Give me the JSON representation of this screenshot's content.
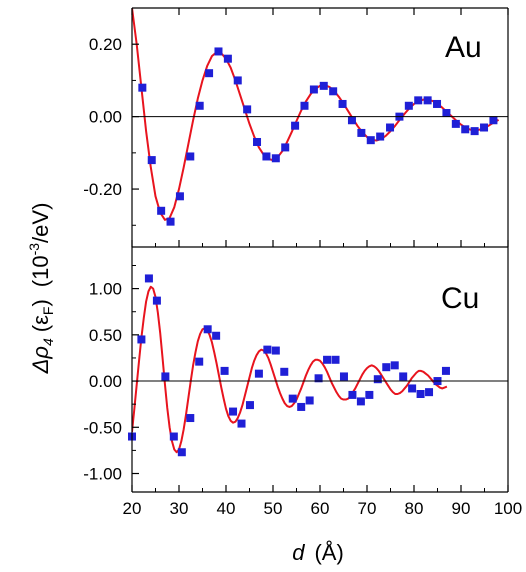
{
  "chart_data": [
    {
      "type": "scatter",
      "panel": "Au",
      "label": "Au",
      "xlim": [
        20,
        100
      ],
      "ylim": [
        -0.36,
        0.3
      ],
      "yticks": [
        -0.2,
        0.0,
        0.2
      ],
      "ytick_labels": [
        "-0.20",
        "0.00",
        "0.20"
      ],
      "points": {
        "x": [
          22.2,
          24.2,
          26.2,
          28.2,
          30.2,
          32.4,
          34.4,
          36.4,
          38.4,
          40.4,
          42.5,
          44.5,
          46.6,
          48.6,
          50.6,
          52.6,
          54.7,
          56.7,
          58.7,
          60.8,
          62.8,
          64.8,
          66.8,
          68.8,
          70.8,
          72.8,
          74.9,
          76.9,
          78.9,
          80.9,
          82.9,
          84.9,
          86.9,
          88.9,
          90.9,
          92.9,
          94.9,
          96.9
        ],
        "y": [
          0.08,
          -0.12,
          -0.26,
          -0.29,
          -0.22,
          -0.11,
          0.03,
          0.12,
          0.18,
          0.16,
          0.1,
          0.02,
          -0.07,
          -0.11,
          -0.115,
          -0.085,
          -0.025,
          0.03,
          0.075,
          0.085,
          0.07,
          0.035,
          -0.01,
          -0.045,
          -0.065,
          -0.055,
          -0.03,
          0.0,
          0.03,
          0.045,
          0.045,
          0.035,
          0.01,
          -0.02,
          -0.035,
          -0.04,
          -0.03,
          -0.01
        ]
      },
      "fit_curve": {
        "x": [
          20.0,
          21.0,
          22.0,
          23.0,
          24.0,
          25.0,
          26.0,
          27.0,
          28.0,
          29.0,
          30.0,
          31.0,
          32.0,
          33.0,
          34.0,
          35.0,
          36.0,
          37.0,
          38.0,
          39.0,
          40.0,
          41.0,
          42.0,
          43.0,
          44.0,
          45.0,
          46.0,
          47.0,
          48.0,
          49.0,
          50.0,
          51.0,
          52.0,
          53.0,
          54.0,
          55.0,
          56.0,
          57.0,
          58.0,
          59.0,
          60.0,
          61.0,
          62.0,
          63.0,
          64.0,
          65.0,
          66.0,
          67.0,
          68.0,
          69.0,
          70.0,
          71.0,
          72.0,
          73.0,
          74.0,
          75.0,
          76.0,
          77.0,
          78.0,
          79.0,
          80.0,
          81.0,
          82.0,
          83.0,
          84.0,
          85.0,
          86.0,
          87.0,
          88.0,
          89.0,
          90.0,
          91.0,
          92.0,
          93.0,
          94.0,
          95.0,
          96.0,
          97.0,
          98.0
        ],
        "y": [
          0.3,
          0.2,
          0.08,
          -0.04,
          -0.14,
          -0.22,
          -0.265,
          -0.285,
          -0.28,
          -0.25,
          -0.2,
          -0.14,
          -0.075,
          -0.01,
          0.05,
          0.1,
          0.14,
          0.167,
          0.178,
          0.175,
          0.16,
          0.135,
          0.1,
          0.06,
          0.02,
          -0.02,
          -0.055,
          -0.085,
          -0.105,
          -0.117,
          -0.12,
          -0.112,
          -0.095,
          -0.07,
          -0.042,
          -0.012,
          0.017,
          0.042,
          0.062,
          0.077,
          0.085,
          0.087,
          0.082,
          0.071,
          0.055,
          0.036,
          0.015,
          -0.006,
          -0.026,
          -0.043,
          -0.056,
          -0.064,
          -0.066,
          -0.062,
          -0.053,
          -0.04,
          -0.025,
          -0.008,
          0.008,
          0.023,
          0.035,
          0.043,
          0.047,
          0.047,
          0.043,
          0.035,
          0.025,
          0.013,
          0.001,
          -0.011,
          -0.022,
          -0.031,
          -0.036,
          -0.038,
          -0.036,
          -0.031,
          -0.024,
          -0.016,
          -0.009
        ]
      }
    },
    {
      "type": "scatter",
      "panel": "Cu",
      "label": "Cu",
      "xlim": [
        20,
        100
      ],
      "ylim": [
        -1.2,
        1.45
      ],
      "yticks": [
        -1.0,
        -0.5,
        0.0,
        0.5,
        1.0
      ],
      "ytick_labels": [
        "-1.00",
        "-0.50",
        "0.00",
        "0.50",
        "1.00"
      ],
      "points": {
        "x": [
          20.0,
          22.0,
          23.6,
          25.3,
          27.1,
          28.9,
          30.6,
          32.4,
          34.3,
          36.1,
          37.9,
          39.7,
          41.5,
          43.3,
          45.1,
          47.0,
          48.8,
          50.6,
          52.4,
          54.2,
          56.0,
          57.8,
          59.7,
          61.5,
          63.3,
          65.1,
          66.9,
          68.7,
          70.5,
          72.3,
          74.1,
          75.9,
          77.7,
          79.6,
          81.4,
          83.2,
          85.0,
          86.8
        ],
        "y": [
          -0.6,
          0.45,
          1.11,
          0.87,
          0.05,
          -0.6,
          -0.77,
          -0.4,
          0.21,
          0.56,
          0.49,
          0.11,
          -0.33,
          -0.46,
          -0.26,
          0.08,
          0.34,
          0.33,
          0.1,
          -0.19,
          -0.28,
          -0.21,
          0.03,
          0.23,
          0.23,
          0.05,
          -0.15,
          -0.22,
          -0.15,
          0.02,
          0.15,
          0.17,
          0.05,
          -0.08,
          -0.14,
          -0.12,
          0.0,
          0.11
        ]
      },
      "fit_curve": {
        "x": [
          20.0,
          20.5,
          21.0,
          21.5,
          22.0,
          22.5,
          23.0,
          23.5,
          24.0,
          24.5,
          25.0,
          25.5,
          26.0,
          26.5,
          27.0,
          27.5,
          28.0,
          28.5,
          29.0,
          29.5,
          30.0,
          30.5,
          31.0,
          31.5,
          32.0,
          32.5,
          33.0,
          33.5,
          34.0,
          34.5,
          35.0,
          35.5,
          36.0,
          36.5,
          37.0,
          37.5,
          38.0,
          38.5,
          39.0,
          39.5,
          40.0,
          40.5,
          41.0,
          41.5,
          42.0,
          42.5,
          43.0,
          43.5,
          44.0,
          44.5,
          45.0,
          45.5,
          46.0,
          46.5,
          47.0,
          47.5,
          48.0,
          48.5,
          49.0,
          49.5,
          50.0,
          50.5,
          51.0,
          51.5,
          52.0,
          52.5,
          53.0,
          53.5,
          54.0,
          54.5,
          55.0,
          55.5,
          56.0,
          56.5,
          57.0,
          57.5,
          58.0,
          58.5,
          59.0,
          59.5,
          60.0,
          60.5,
          61.0,
          61.5,
          62.0,
          62.5,
          63.0,
          63.5,
          64.0,
          64.5,
          65.0,
          65.5,
          66.0,
          66.5,
          67.0,
          67.5,
          68.0,
          68.5,
          69.0,
          69.5,
          70.0,
          70.5,
          71.0,
          71.5,
          72.0,
          72.5,
          73.0,
          73.5,
          74.0,
          74.5,
          75.0,
          75.5,
          76.0,
          76.5,
          77.0,
          77.5,
          78.0,
          78.5,
          79.0,
          79.5,
          80.0,
          80.5,
          81.0,
          81.5,
          82.0,
          82.5,
          83.0,
          83.5,
          84.0,
          84.5,
          85.0,
          85.5,
          86.0,
          86.5,
          87.0
        ],
        "y": [
          -0.55,
          -0.3,
          -0.04,
          0.22,
          0.47,
          0.68,
          0.86,
          0.97,
          1.02,
          1.0,
          0.91,
          0.74,
          0.52,
          0.25,
          -0.03,
          -0.29,
          -0.5,
          -0.65,
          -0.74,
          -0.77,
          -0.74,
          -0.65,
          -0.52,
          -0.36,
          -0.18,
          0.0,
          0.17,
          0.31,
          0.43,
          0.51,
          0.56,
          0.57,
          0.55,
          0.5,
          0.42,
          0.31,
          0.19,
          0.06,
          -0.07,
          -0.19,
          -0.3,
          -0.38,
          -0.43,
          -0.45,
          -0.44,
          -0.4,
          -0.34,
          -0.26,
          -0.16,
          -0.06,
          0.04,
          0.14,
          0.22,
          0.28,
          0.32,
          0.34,
          0.33,
          0.3,
          0.25,
          0.18,
          0.1,
          0.02,
          -0.06,
          -0.13,
          -0.19,
          -0.24,
          -0.27,
          -0.28,
          -0.27,
          -0.24,
          -0.2,
          -0.14,
          -0.08,
          -0.01,
          0.06,
          0.12,
          0.17,
          0.21,
          0.23,
          0.23,
          0.22,
          0.19,
          0.15,
          0.1,
          0.04,
          -0.02,
          -0.07,
          -0.12,
          -0.16,
          -0.19,
          -0.2,
          -0.2,
          -0.19,
          -0.16,
          -0.12,
          -0.08,
          -0.03,
          0.02,
          0.07,
          0.11,
          0.14,
          0.16,
          0.17,
          0.16,
          0.14,
          0.11,
          0.07,
          0.03,
          -0.01,
          -0.05,
          -0.09,
          -0.12,
          -0.14,
          -0.14,
          -0.13,
          -0.11,
          -0.08,
          -0.05,
          -0.01,
          0.03,
          0.06,
          0.09,
          0.11,
          0.11,
          0.1,
          0.08,
          0.06,
          0.03,
          0.0,
          -0.03,
          -0.05,
          -0.07,
          -0.08,
          -0.07,
          -0.06
        ]
      }
    }
  ],
  "shared": {
    "xticks": [
      20,
      30,
      40,
      50,
      60,
      70,
      80,
      90,
      100
    ],
    "xtick_labels": [
      "20",
      "30",
      "40",
      "50",
      "60",
      "70",
      "80",
      "90",
      "100"
    ],
    "xlabel_symbol": "d",
    "xlabel_unit": "(Å)",
    "ylabel_symbol": "Δρ",
    "ylabel_subscript": "4",
    "ylabel_arg_open": "(ε",
    "ylabel_arg_subscript": "F",
    "ylabel_arg_close": ")",
    "ylabel_unit_open": "(10",
    "ylabel_unit_exponent": "-3",
    "ylabel_unit_close": "/eV)",
    "colors": {
      "marker": "#1f1fd6",
      "curve": "#e8141e",
      "axis": "#000000"
    }
  }
}
